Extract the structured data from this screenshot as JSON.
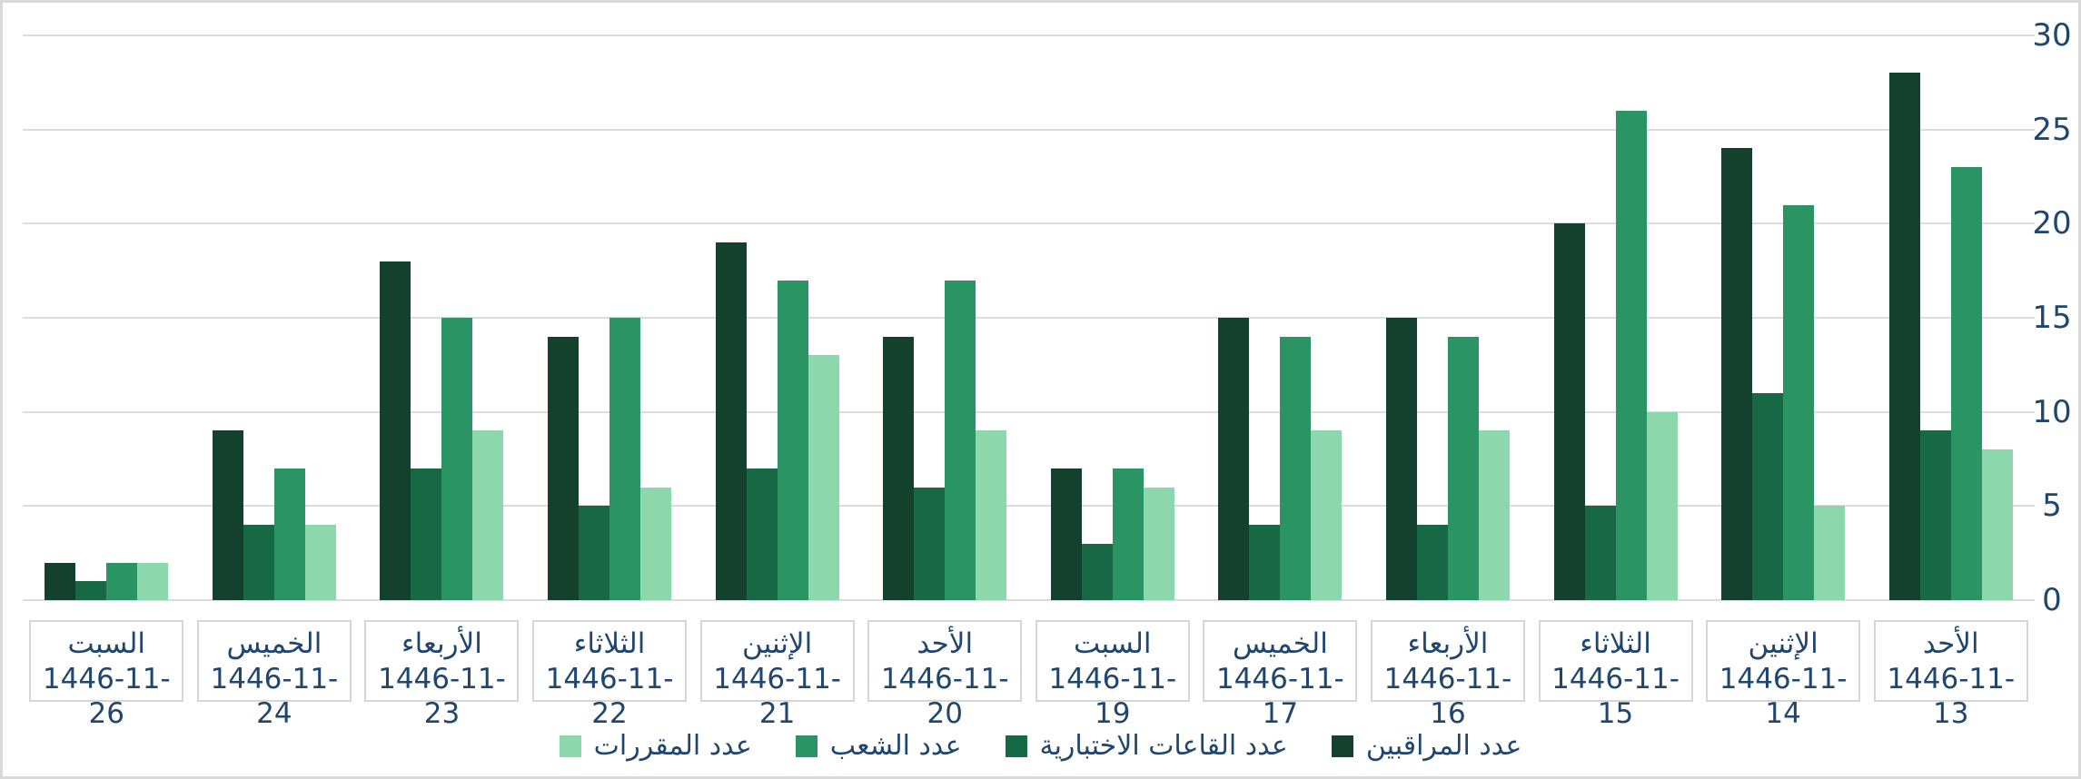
{
  "chart_data": {
    "type": "bar",
    "direction": "rtl",
    "title": "",
    "xlabel": "",
    "ylabel": "",
    "ylim": [
      0,
      30
    ],
    "yticks": [
      0,
      5,
      10,
      15,
      20,
      25,
      30
    ],
    "grid": true,
    "legend_position": "bottom",
    "categories": [
      {
        "day": "السبت",
        "date": "1446-11-26"
      },
      {
        "day": "الخميس",
        "date": "1446-11-24"
      },
      {
        "day": "الأربعاء",
        "date": "1446-11-23"
      },
      {
        "day": "الثلاثاء",
        "date": "1446-11-22"
      },
      {
        "day": "الإثنين",
        "date": "1446-11-21"
      },
      {
        "day": "الأحد",
        "date": "1446-11-20"
      },
      {
        "day": "السبت",
        "date": "1446-11-19"
      },
      {
        "day": "الخميس",
        "date": "1446-11-17"
      },
      {
        "day": "الأربعاء",
        "date": "1446-11-16"
      },
      {
        "day": "الثلاثاء",
        "date": "1446-11-15"
      },
      {
        "day": "الإثنين",
        "date": "1446-11-14"
      },
      {
        "day": "الأحد",
        "date": "1446-11-13"
      }
    ],
    "series": [
      {
        "name": "عدد المراقبين",
        "color": "#14402e",
        "values": [
          2,
          9,
          18,
          14,
          19,
          14,
          7,
          15,
          15,
          20,
          24,
          28
        ]
      },
      {
        "name": "عدد القاعات الاختبارية",
        "color": "#176946",
        "values": [
          1,
          4,
          7,
          5,
          7,
          6,
          3,
          4,
          4,
          5,
          11,
          9
        ]
      },
      {
        "name": "عدد الشعب",
        "color": "#2b9465",
        "values": [
          2,
          7,
          15,
          15,
          17,
          17,
          7,
          14,
          14,
          26,
          21,
          23
        ]
      },
      {
        "name": "عدد المقررات",
        "color": "#8cd8ac",
        "values": [
          2,
          4,
          9,
          6,
          13,
          9,
          6,
          9,
          9,
          10,
          5,
          8
        ]
      }
    ],
    "legend_order_visual_ltr": [
      "عدد المقررات",
      "عدد الشعب",
      "عدد القاعات الاختبارية",
      "عدد المراقبين"
    ]
  },
  "colors": {
    "text": "#21466e",
    "gridline": "#dcdcdc",
    "category_box_border": "#d6d6d6",
    "frame_border": "#d9d9d9",
    "plot_background": "#ffffff"
  }
}
